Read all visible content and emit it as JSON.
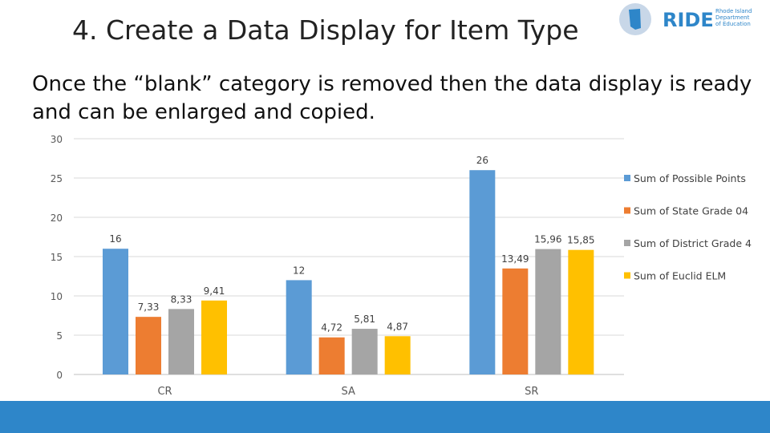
{
  "slide": {
    "title": "4.   Create a Data Display for Item Type",
    "body": "Once the “blank” category is removed then the data display is ready and can be enlarged and copied."
  },
  "logo": {
    "text": "RIDE",
    "small_lines": [
      "Rhode Island",
      "Department",
      "of Education"
    ],
    "color": "#2e86c9"
  },
  "colors": {
    "title": "#222222",
    "bottom_bar": "#2e86c9"
  },
  "chart_data": {
    "type": "bar",
    "categories": [
      "CR",
      "SA",
      "SR"
    ],
    "series": [
      {
        "name": "Sum of Possible Points",
        "color": "#5b9bd5",
        "values": [
          16,
          12,
          26
        ],
        "labels": [
          "16",
          "12",
          "26"
        ]
      },
      {
        "name": "Sum of State Grade 04",
        "color": "#ed7d31",
        "values": [
          7.33,
          4.72,
          13.49
        ],
        "labels": [
          "7,33",
          "4,72",
          "13,49"
        ]
      },
      {
        "name": "Sum of District Grade 4",
        "color": "#a5a5a5",
        "values": [
          8.33,
          5.81,
          15.96
        ],
        "labels": [
          "8,33",
          "5,81",
          "15,96"
        ]
      },
      {
        "name": "Sum of Euclid ELM",
        "color": "#ffc000",
        "values": [
          9.41,
          4.87,
          15.85
        ],
        "labels": [
          "9,41",
          "4,87",
          "15,85"
        ]
      }
    ],
    "yticks": [
      "0",
      "5",
      "10",
      "15",
      "20",
      "25",
      "30"
    ],
    "ylim": [
      0,
      30
    ],
    "grid": true,
    "legend_position": "right"
  }
}
